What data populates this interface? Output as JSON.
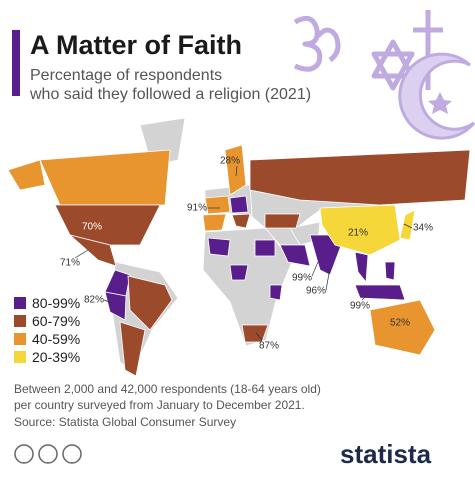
{
  "header": {
    "title": "A Matter of Faith",
    "subtitle_lines": [
      "Percentage of respondents",
      "who said they followed a religion (2021)"
    ]
  },
  "legend": [
    {
      "label": "80-99%",
      "color": "#5a1e8c"
    },
    {
      "label": "60-79%",
      "color": "#9c4a2c"
    },
    {
      "label": "40-59%",
      "color": "#e8942f"
    },
    {
      "label": "20-39%",
      "color": "#f6d73a"
    }
  ],
  "map_labels": [
    "28%",
    "91%",
    "70%",
    "71%",
    "21%",
    "34%",
    "99%",
    "96%",
    "82%",
    "99%",
    "52%",
    "87%"
  ],
  "footer": {
    "note_lines": [
      "Between 2,000 and 42,000 respondents (18-64 years old)",
      "per country surveyed from January to December 2021."
    ],
    "source": "Source: Statista Global Consumer Survey",
    "logo": "statista"
  }
}
